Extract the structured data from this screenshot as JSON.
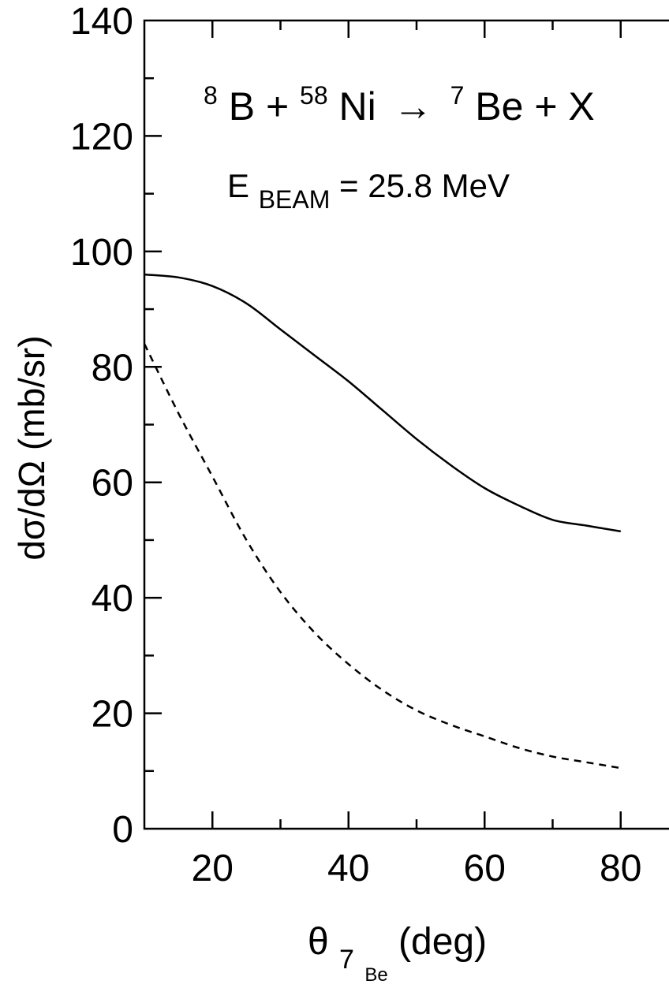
{
  "chart_data": {
    "type": "line",
    "title": {
      "reaction_b_mass": "8",
      "reaction_b": "B + ",
      "reaction_ni_mass": "58",
      "reaction_ni": "Ni",
      "arrow": "→",
      "reaction_be_mass": "7",
      "reaction_be": "Be + X"
    },
    "annotation": {
      "e_main": "E",
      "e_sub": "BEAM",
      "e_value": " = 25.8 MeV"
    },
    "xlabel": {
      "theta": "θ",
      "sub_mass": "7",
      "sub_elem": "Be",
      "unit": " (deg)"
    },
    "ylabel": "dσ/dΩ (mb/sr)",
    "xlim": [
      10,
      90
    ],
    "ylim": [
      0,
      140
    ],
    "x_ticks": [
      "20",
      "40",
      "60",
      "80"
    ],
    "y_ticks": [
      "0",
      "20",
      "40",
      "60",
      "80",
      "100",
      "120",
      "140"
    ],
    "series": [
      {
        "style": "solid",
        "color": "#000000",
        "x": [
          10,
          15,
          20,
          25,
          30,
          35,
          40,
          45,
          50,
          55,
          60,
          65,
          70,
          75,
          80
        ],
        "y": [
          96.0,
          95.5,
          94.0,
          91.0,
          86.5,
          82.0,
          77.5,
          72.5,
          67.5,
          63.0,
          59.0,
          56.0,
          53.5,
          52.5,
          51.5
        ]
      },
      {
        "style": "dashed",
        "color": "#000000",
        "x": [
          10,
          15,
          20,
          25,
          30,
          35,
          40,
          45,
          50,
          55,
          60,
          65,
          70,
          75,
          80
        ],
        "y": [
          84.0,
          72.0,
          61.0,
          50.0,
          41.0,
          34.0,
          28.5,
          24.0,
          20.5,
          18.0,
          16.0,
          14.0,
          12.5,
          11.5,
          10.5
        ]
      }
    ]
  }
}
